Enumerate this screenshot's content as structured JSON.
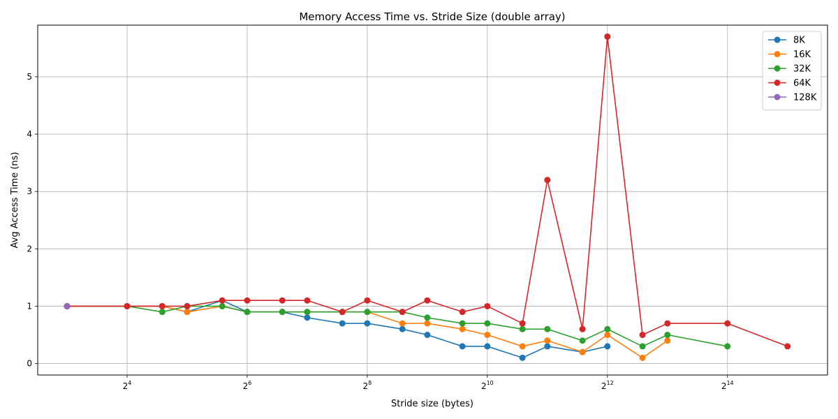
{
  "chart_data": {
    "type": "line",
    "title": "Memory Access Time vs. Stride Size (double array)",
    "xlabel": "Stride size (bytes)",
    "ylabel": "Avg Access Time (ns)",
    "xscale": "log2",
    "xlim": [
      5.7,
      52000
    ],
    "ylim": [
      -0.2,
      5.9
    ],
    "xticks": [
      {
        "value": 16,
        "base": "2",
        "exp": "4"
      },
      {
        "value": 64,
        "base": "2",
        "exp": "6"
      },
      {
        "value": 256,
        "base": "2",
        "exp": "8"
      },
      {
        "value": 1024,
        "base": "2",
        "exp": "10"
      },
      {
        "value": 4096,
        "base": "2",
        "exp": "12"
      },
      {
        "value": 16384,
        "base": "2",
        "exp": "14"
      }
    ],
    "yticks": [
      0,
      1,
      2,
      3,
      4,
      5
    ],
    "grid": true,
    "legend_position": "top-right",
    "series": [
      {
        "name": "8K",
        "color": "#1f77b4",
        "x": [
          8,
          16,
          24,
          32,
          48,
          64,
          96,
          128,
          192,
          256,
          384,
          512,
          768,
          1024,
          1536,
          2048,
          3072,
          4096
        ],
        "y": [
          1.0,
          1.0,
          1.0,
          0.9,
          1.1,
          0.9,
          0.9,
          0.8,
          0.7,
          0.7,
          0.6,
          0.5,
          0.3,
          0.3,
          0.1,
          0.3,
          0.2,
          0.3
        ]
      },
      {
        "name": "16K",
        "color": "#ff7f0e",
        "x": [
          8,
          16,
          24,
          32,
          48,
          64,
          96,
          128,
          192,
          256,
          384,
          512,
          768,
          1024,
          1536,
          2048,
          3072,
          4096,
          6144,
          8192
        ],
        "y": [
          1.0,
          1.0,
          1.0,
          0.9,
          1.0,
          0.9,
          0.9,
          0.9,
          0.9,
          0.9,
          0.7,
          0.7,
          0.6,
          0.5,
          0.3,
          0.4,
          0.2,
          0.5,
          0.1,
          0.4
        ]
      },
      {
        "name": "32K",
        "color": "#2ca02c",
        "x": [
          8,
          16,
          24,
          32,
          48,
          64,
          96,
          128,
          192,
          256,
          384,
          512,
          768,
          1024,
          1536,
          2048,
          3072,
          4096,
          6144,
          8192,
          16384
        ],
        "y": [
          1.0,
          1.0,
          0.9,
          1.0,
          1.0,
          0.9,
          0.9,
          0.9,
          0.9,
          0.9,
          0.9,
          0.8,
          0.7,
          0.7,
          0.6,
          0.6,
          0.4,
          0.6,
          0.3,
          0.5,
          0.3
        ]
      },
      {
        "name": "64K",
        "color": "#d62728",
        "x": [
          8,
          16,
          24,
          32,
          48,
          64,
          96,
          128,
          192,
          256,
          384,
          512,
          768,
          1024,
          1536,
          2048,
          3072,
          4096,
          6144,
          8192,
          16384,
          32768
        ],
        "y": [
          1.0,
          1.0,
          1.0,
          1.0,
          1.1,
          1.1,
          1.1,
          1.1,
          0.9,
          1.1,
          0.9,
          1.1,
          0.9,
          1.0,
          0.7,
          3.2,
          0.6,
          5.7,
          0.5,
          0.7,
          0.7,
          0.3
        ]
      },
      {
        "name": "128K",
        "color": "#9467bd",
        "x": [
          8
        ],
        "y": [
          1.0
        ]
      }
    ]
  }
}
